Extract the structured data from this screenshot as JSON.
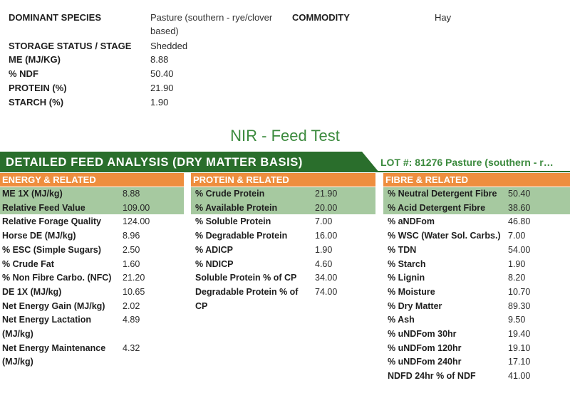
{
  "summary": [
    {
      "label": "DOMINANT SPECIES",
      "value_lines": [
        "Pasture (southern - rye/clover",
        "based)"
      ]
    },
    {
      "label": "STORAGE STATUS / STAGE",
      "value_lines": [
        "Shedded"
      ]
    },
    {
      "label": "ME (MJ/KG)",
      "value_lines": [
        "8.88"
      ]
    },
    {
      "label": "% NDF",
      "value_lines": [
        "50.40"
      ]
    },
    {
      "label": "PROTEIN (%)",
      "value_lines": [
        "21.90"
      ]
    },
    {
      "label": "STARCH (%)",
      "value_lines": [
        "1.90"
      ]
    }
  ],
  "commodity": {
    "label": "COMMODITY",
    "value": "Hay"
  },
  "title": "NIR - Feed Test",
  "banner": "DETAILED FEED ANALYSIS (DRY MATTER BASIS)",
  "lot": "LOT #: 81276 Pasture (southern - r…",
  "columns": [
    {
      "header": "ENERGY & RELATED",
      "rows": [
        {
          "label": [
            "ME 1X (MJ/kg)"
          ],
          "value": "8.88"
        },
        {
          "label": [
            "Relative Feed Value"
          ],
          "value": "109.00"
        },
        {
          "label": [
            "Relative Forage Quality"
          ],
          "value": "124.00"
        },
        {
          "label": [
            "Horse DE (MJ/kg)"
          ],
          "value": "8.96"
        },
        {
          "label": [
            "% ESC (Simple Sugars)"
          ],
          "value": "2.50"
        },
        {
          "label": [
            "% Crude Fat"
          ],
          "value": "1.60"
        },
        {
          "label": [
            "% Non Fibre Carbo. (NFC)"
          ],
          "value": "21.20"
        },
        {
          "label": [
            "DE 1X (MJ/kg)"
          ],
          "value": "10.65"
        },
        {
          "label": [
            "Net Energy Gain (MJ/kg)"
          ],
          "value": "2.02"
        },
        {
          "label": [
            "Net Energy Lactation",
            "(MJ/kg)"
          ],
          "value": "4.89"
        },
        {
          "label": [
            "Net Energy Maintenance",
            "(MJ/kg)"
          ],
          "value": "4.32"
        }
      ]
    },
    {
      "header": "PROTEIN & RELATED",
      "rows": [
        {
          "label": [
            "% Crude Protein"
          ],
          "value": "21.90"
        },
        {
          "label": [
            "% Available Protein"
          ],
          "value": "20.00"
        },
        {
          "label": [
            "% Soluble Protein"
          ],
          "value": "7.00"
        },
        {
          "label": [
            "% Degradable Protein"
          ],
          "value": "16.00"
        },
        {
          "label": [
            "% ADICP"
          ],
          "value": "1.90"
        },
        {
          "label": [
            "% NDICP"
          ],
          "value": "4.60"
        },
        {
          "label": [
            "Soluble Protein % of CP"
          ],
          "value": "34.00"
        },
        {
          "label": [
            "Degradable Protein % of",
            "CP"
          ],
          "value": "74.00"
        }
      ]
    },
    {
      "header": "FIBRE & RELATED",
      "rows": [
        {
          "label": [
            "% Neutral Detergent Fibre"
          ],
          "value": "50.40"
        },
        {
          "label": [
            "% Acid Detergent Fibre"
          ],
          "value": "38.60"
        },
        {
          "label": [
            "% aNDFom"
          ],
          "value": "46.80"
        },
        {
          "label": [
            "% WSC (Water Sol. Carbs.)"
          ],
          "value": "7.00"
        },
        {
          "label": [
            "% TDN"
          ],
          "value": "54.00"
        },
        {
          "label": [
            "% Starch"
          ],
          "value": "1.90"
        },
        {
          "label": [
            "% Lignin"
          ],
          "value": "8.20"
        },
        {
          "label": [
            "% Moisture"
          ],
          "value": "10.70"
        },
        {
          "label": [
            "% Dry Matter"
          ],
          "value": "89.30"
        },
        {
          "label": [
            "% Ash"
          ],
          "value": "9.50"
        },
        {
          "label": [
            "% uNDFom 30hr"
          ],
          "value": "19.40"
        },
        {
          "label": [
            "% uNDFom 120hr"
          ],
          "value": "19.10"
        },
        {
          "label": [
            "% uNDFom 240hr"
          ],
          "value": "17.10"
        },
        {
          "label": [
            "NDFD 24hr % of NDF"
          ],
          "value": "41.00"
        }
      ]
    }
  ],
  "colors": {
    "green_dark": "#2a6e2c",
    "green_text": "#3b8a3d",
    "orange": "#ee8e3e",
    "highlight": "#a6c9a0"
  }
}
